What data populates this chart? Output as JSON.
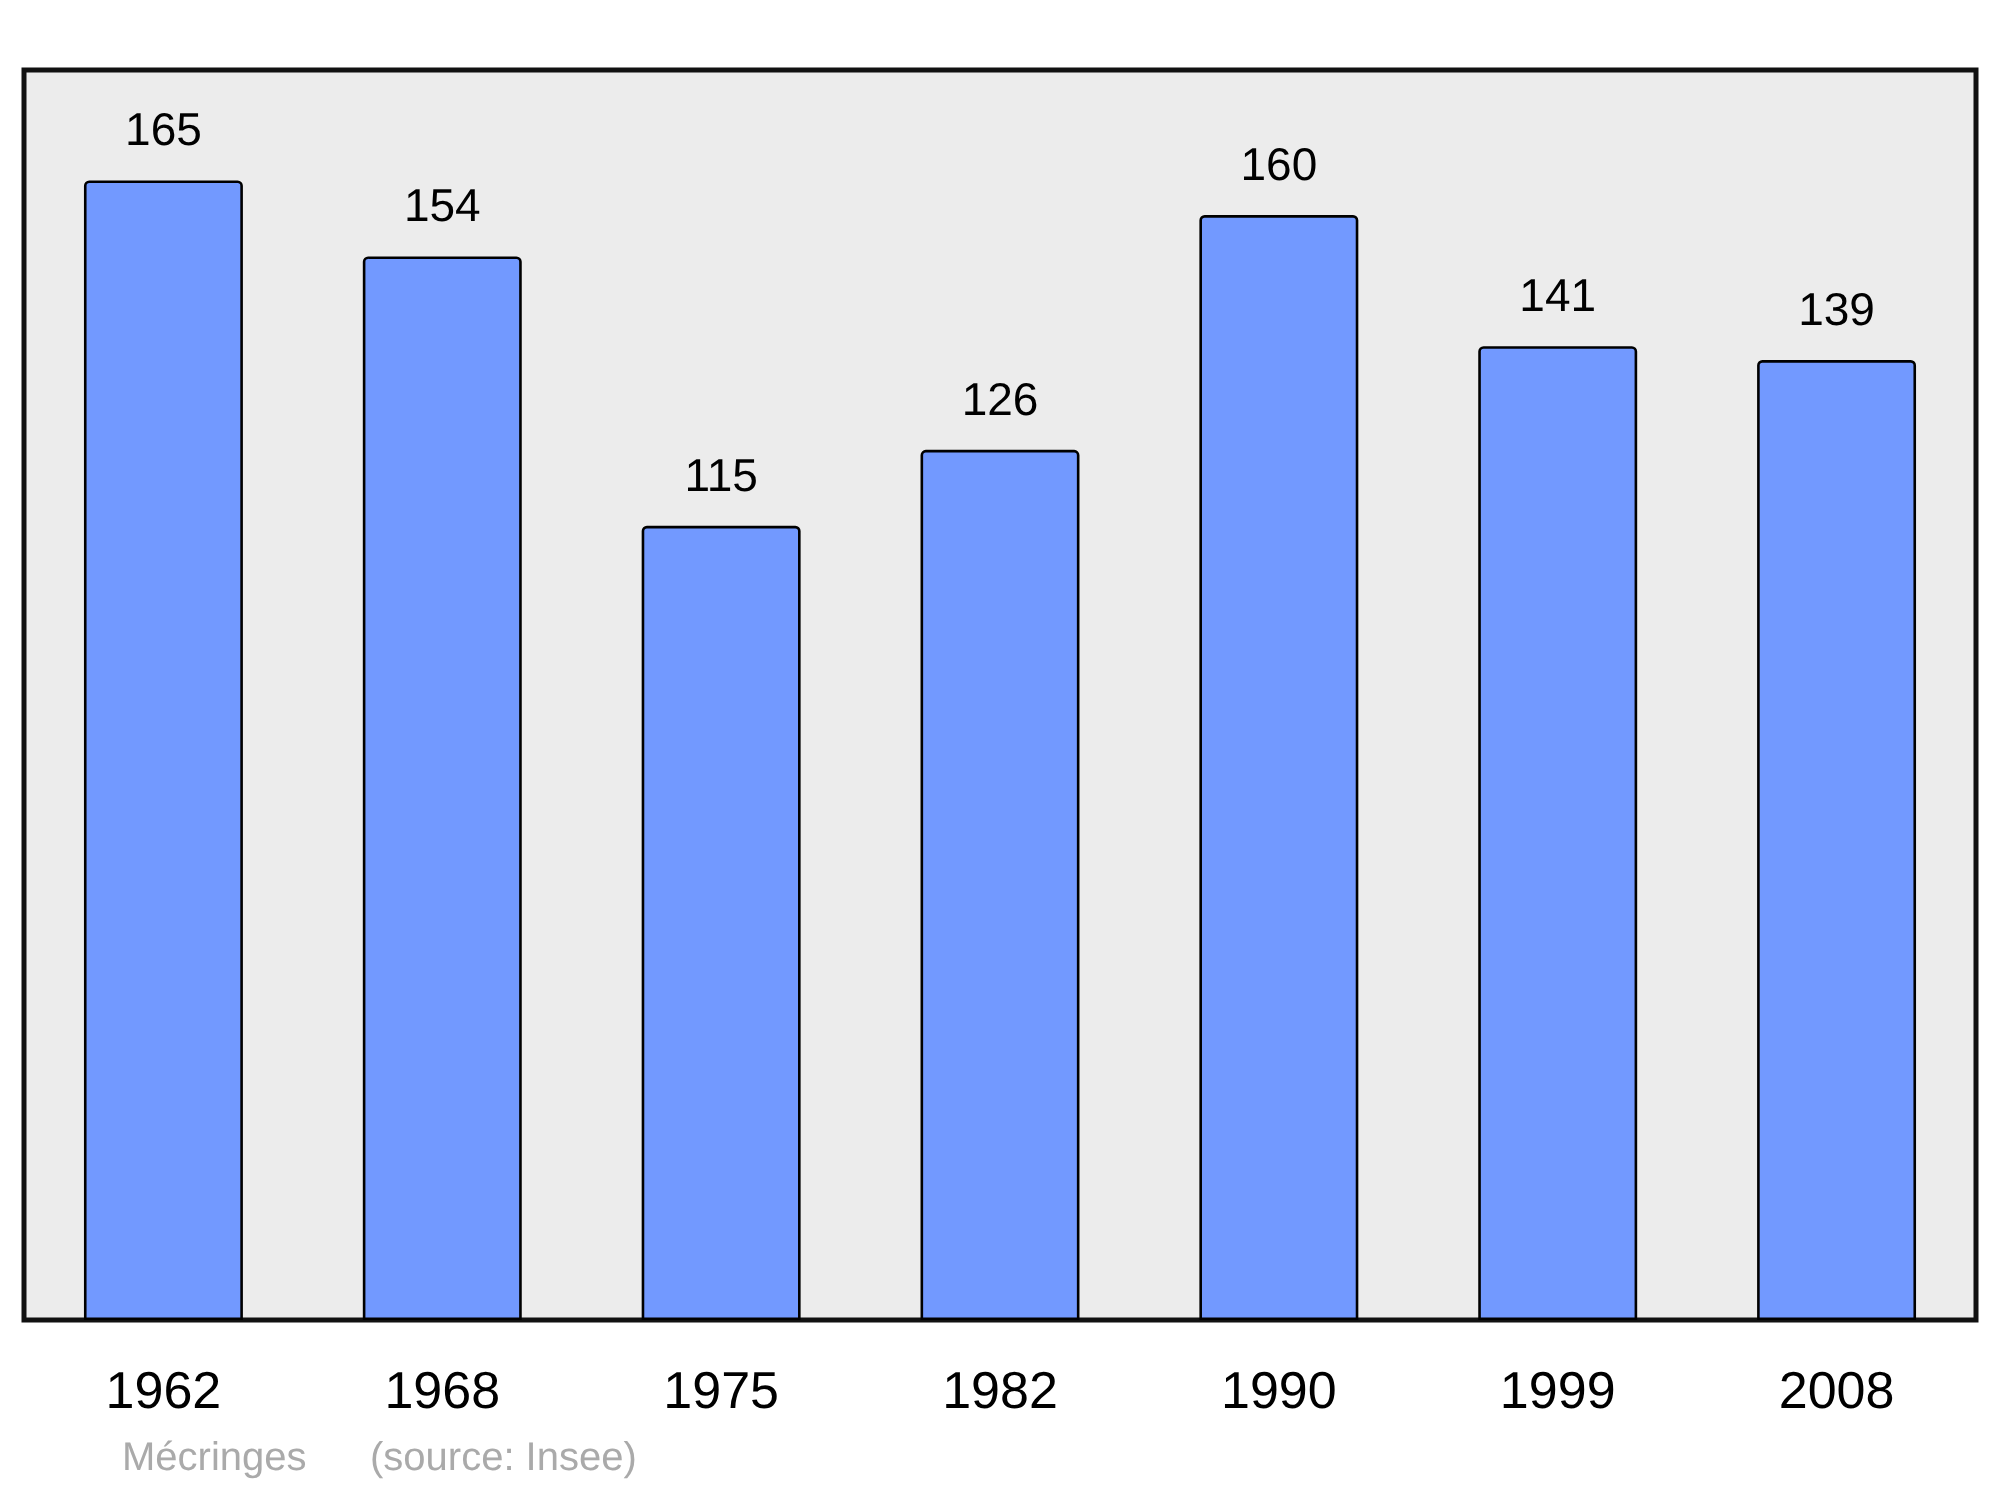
{
  "chart_data": {
    "type": "bar",
    "categories": [
      "1962",
      "1968",
      "1975",
      "1982",
      "1990",
      "1999",
      "2008"
    ],
    "values": [
      165,
      154,
      115,
      126,
      160,
      141,
      139
    ],
    "color": "#7299ff",
    "ylim": [
      0,
      181
    ],
    "data_labels": true,
    "annotations": [
      "Mécringes",
      "(source: Insee)"
    ]
  }
}
